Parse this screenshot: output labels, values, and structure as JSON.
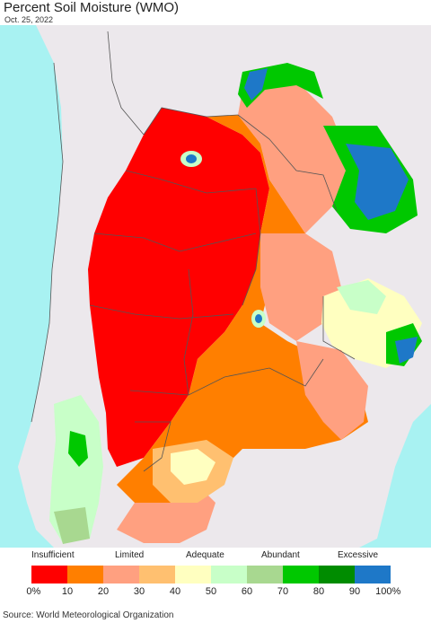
{
  "title": "Percent Soil Moisture (WMO)",
  "date": "Oct. 25, 2022",
  "legend": {
    "categories": [
      "Insufficient",
      "Limited",
      "Adequate",
      "Abundant",
      "Excessive"
    ],
    "ticks": [
      "0%",
      "10",
      "20",
      "30",
      "40",
      "50",
      "60",
      "70",
      "80",
      "90",
      "100%"
    ],
    "colors": [
      "#ff0000",
      "#ff7f00",
      "#ffa080",
      "#ffc070",
      "#ffffc0",
      "#c8ffc8",
      "#a8d890",
      "#00c800",
      "#008c00",
      "#1e78c8"
    ]
  },
  "map_colors": {
    "ocean": "#a8f2f2",
    "land": "#ece8ec",
    "border": "#555555"
  },
  "source": "Source: World Meteorological Organization"
}
